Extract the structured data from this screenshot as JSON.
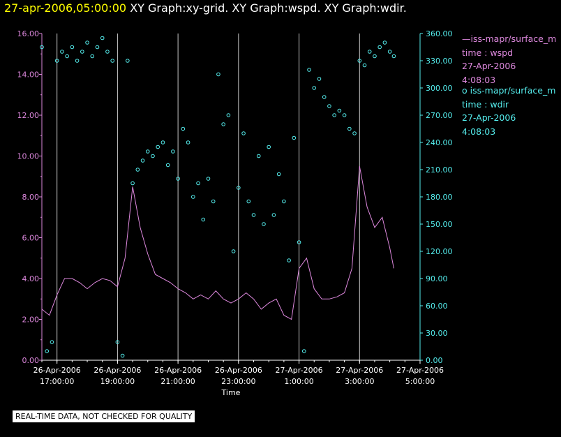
{
  "header": {
    "timestamp": "27-apr-2006,05:00:00",
    "titles": "XY Graph:xy-grid.  XY Graph:wspd.  XY Graph:wdir."
  },
  "legend": [
    {
      "marker": "—",
      "name": "iss-mapr/surface_m",
      "line2": "time : wspd",
      "line3": "27-Apr-2006",
      "line4": "4:08:03",
      "color": "#dd88dd"
    },
    {
      "marker": "o",
      "name": "iss-mapr/surface_m",
      "line2": "time : wdir",
      "line3": "27-Apr-2006",
      "line4": "4:08:03",
      "color": "#55eeee"
    }
  ],
  "notice": "REAL-TIME DATA, NOT CHECKED FOR QUALITY",
  "chart_data": {
    "type": "line",
    "xlabel": "Time",
    "x_range": [
      "2006-04-26 16:30",
      "2006-04-27 05:00"
    ],
    "x_ticks": [
      [
        "26-Apr-2006",
        "17:00:00"
      ],
      [
        "26-Apr-2006",
        "19:00:00"
      ],
      [
        "26-Apr-2006",
        "21:00:00"
      ],
      [
        "26-Apr-2006",
        "23:00:00"
      ],
      [
        "27-Apr-2006",
        "1:00:00"
      ],
      [
        "27-Apr-2006",
        "3:00:00"
      ],
      [
        "27-Apr-2006",
        "5:00:00"
      ]
    ],
    "grid": true,
    "y_left": {
      "range": [
        0,
        16
      ],
      "ticks": [
        "0.00",
        "2.00",
        "4.00",
        "6.00",
        "8.00",
        "10.00",
        "12.00",
        "14.00",
        "16.00"
      ],
      "color": "#dd88dd"
    },
    "y_right": {
      "range": [
        0,
        360
      ],
      "ticks": [
        "0.00",
        "30.00",
        "60.00",
        "90.00",
        "120.00",
        "150.00",
        "180.00",
        "210.00",
        "240.00",
        "270.00",
        "300.00",
        "330.00",
        "360.00"
      ],
      "color": "#55eeee"
    },
    "series": [
      {
        "name": "wspd",
        "axis": "left",
        "style": "line",
        "color": "#dd88dd",
        "x": [
          "2006-04-26 16:30",
          "2006-04-26 16:45",
          "2006-04-26 17:00",
          "2006-04-26 17:15",
          "2006-04-26 17:30",
          "2006-04-26 17:45",
          "2006-04-26 18:00",
          "2006-04-26 18:15",
          "2006-04-26 18:30",
          "2006-04-26 18:45",
          "2006-04-26 19:00",
          "2006-04-26 19:15",
          "2006-04-26 19:30",
          "2006-04-26 19:45",
          "2006-04-26 20:00",
          "2006-04-26 20:15",
          "2006-04-26 20:30",
          "2006-04-26 20:45",
          "2006-04-26 21:00",
          "2006-04-26 21:15",
          "2006-04-26 21:30",
          "2006-04-26 21:45",
          "2006-04-26 22:00",
          "2006-04-26 22:15",
          "2006-04-26 22:30",
          "2006-04-26 22:45",
          "2006-04-26 23:00",
          "2006-04-26 23:15",
          "2006-04-26 23:30",
          "2006-04-26 23:45",
          "2006-04-27 00:00",
          "2006-04-27 00:15",
          "2006-04-27 00:30",
          "2006-04-27 00:45",
          "2006-04-27 01:00",
          "2006-04-27 01:15",
          "2006-04-27 01:30",
          "2006-04-27 01:45",
          "2006-04-27 02:00",
          "2006-04-27 02:15",
          "2006-04-27 02:30",
          "2006-04-27 02:45",
          "2006-04-27 03:00",
          "2006-04-27 03:15",
          "2006-04-27 03:30",
          "2006-04-27 03:45",
          "2006-04-27 04:00",
          "2006-04-27 04:08"
        ],
        "values": [
          2.5,
          2.2,
          3.2,
          4.0,
          4.0,
          3.8,
          3.5,
          3.8,
          4.0,
          3.9,
          3.6,
          5.0,
          8.5,
          6.5,
          5.2,
          4.2,
          4.0,
          3.8,
          3.5,
          3.3,
          3.0,
          3.2,
          3.0,
          3.4,
          3.0,
          2.8,
          3.0,
          3.3,
          3.0,
          2.5,
          2.8,
          3.0,
          2.2,
          2.0,
          4.5,
          5.0,
          3.5,
          3.0,
          3.0,
          3.1,
          3.3,
          4.5,
          9.5,
          7.5,
          6.5,
          7.0,
          5.5,
          4.5
        ]
      },
      {
        "name": "wdir",
        "axis": "right",
        "style": "points",
        "color": "#55eeee",
        "x": [
          "2006-04-26 16:30",
          "2006-04-26 16:40",
          "2006-04-26 16:50",
          "2006-04-26 17:00",
          "2006-04-26 17:10",
          "2006-04-26 17:20",
          "2006-04-26 17:30",
          "2006-04-26 17:40",
          "2006-04-26 17:50",
          "2006-04-26 18:00",
          "2006-04-26 18:10",
          "2006-04-26 18:20",
          "2006-04-26 18:30",
          "2006-04-26 18:40",
          "2006-04-26 18:50",
          "2006-04-26 19:00",
          "2006-04-26 19:10",
          "2006-04-26 19:20",
          "2006-04-26 19:30",
          "2006-04-26 19:40",
          "2006-04-26 19:50",
          "2006-04-26 20:00",
          "2006-04-26 20:10",
          "2006-04-26 20:20",
          "2006-04-26 20:30",
          "2006-04-26 20:40",
          "2006-04-26 20:50",
          "2006-04-26 21:00",
          "2006-04-26 21:10",
          "2006-04-26 21:20",
          "2006-04-26 21:30",
          "2006-04-26 21:40",
          "2006-04-26 21:50",
          "2006-04-26 22:00",
          "2006-04-26 22:10",
          "2006-04-26 22:20",
          "2006-04-26 22:30",
          "2006-04-26 22:40",
          "2006-04-26 22:50",
          "2006-04-26 23:00",
          "2006-04-26 23:10",
          "2006-04-26 23:20",
          "2006-04-26 23:30",
          "2006-04-26 23:40",
          "2006-04-26 23:50",
          "2006-04-27 00:00",
          "2006-04-27 00:10",
          "2006-04-27 00:20",
          "2006-04-27 00:30",
          "2006-04-27 00:40",
          "2006-04-27 00:50",
          "2006-04-27 01:00",
          "2006-04-27 01:10",
          "2006-04-27 01:20",
          "2006-04-27 01:30",
          "2006-04-27 01:40",
          "2006-04-27 01:50",
          "2006-04-27 02:00",
          "2006-04-27 02:10",
          "2006-04-27 02:20",
          "2006-04-27 02:30",
          "2006-04-27 02:40",
          "2006-04-27 02:50",
          "2006-04-27 03:00",
          "2006-04-27 03:10",
          "2006-04-27 03:20",
          "2006-04-27 03:30",
          "2006-04-27 03:40",
          "2006-04-27 03:50",
          "2006-04-27 04:00",
          "2006-04-27 04:08"
        ],
        "values": [
          345,
          10,
          20,
          330,
          340,
          335,
          345,
          330,
          340,
          350,
          335,
          345,
          355,
          340,
          330,
          20,
          5,
          330,
          195,
          210,
          220,
          230,
          225,
          235,
          240,
          215,
          230,
          200,
          255,
          240,
          180,
          195,
          155,
          200,
          175,
          315,
          260,
          270,
          120,
          190,
          250,
          175,
          160,
          225,
          150,
          235,
          160,
          205,
          175,
          110,
          245,
          130,
          10,
          320,
          300,
          310,
          290,
          280,
          270,
          275,
          270,
          255,
          250,
          330,
          325,
          340,
          335,
          345,
          350,
          340,
          335
        ]
      }
    ]
  }
}
